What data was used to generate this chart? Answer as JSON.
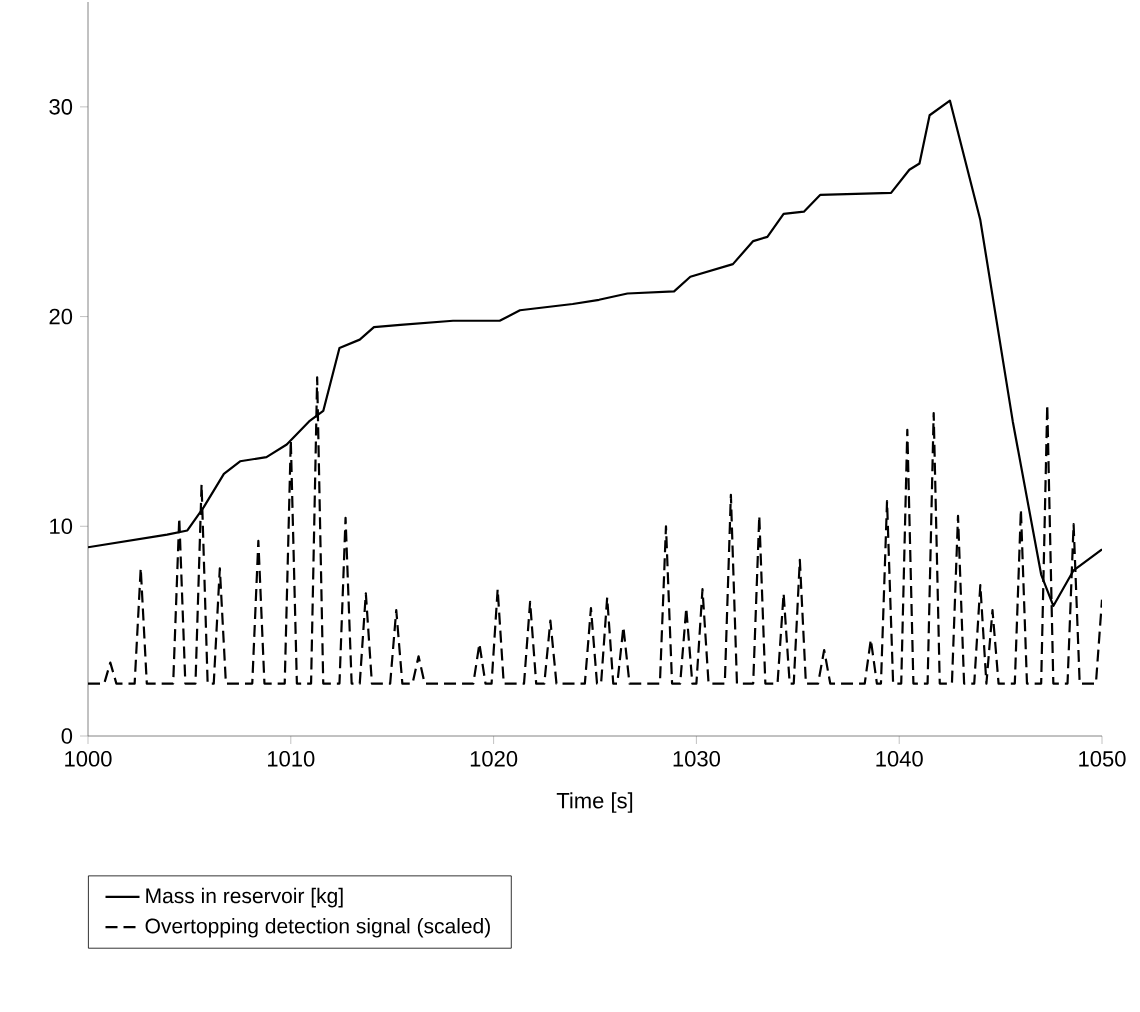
{
  "chart_data": {
    "type": "line",
    "xlabel": "Time [s]",
    "xlim": [
      1000,
      1050
    ],
    "xticks": [
      1000,
      1010,
      1020,
      1030,
      1040,
      1050
    ],
    "ylim": [
      0,
      35
    ],
    "yticks": [
      0,
      10,
      20,
      30
    ],
    "grid": false,
    "legend": "bottom",
    "series": [
      {
        "name": "Mass in reservoir [kg]",
        "color": "#000000",
        "line_style": "solid",
        "x": [
          1000.0,
          1003.9,
          1004.9,
          1005.7,
          1006.7,
          1007.5,
          1008.8,
          1009.8,
          1010.9,
          1011.6,
          1012.4,
          1013.4,
          1014.1,
          1015.4,
          1018.0,
          1020.3,
          1021.3,
          1023.9,
          1025.2,
          1026.6,
          1028.9,
          1029.7,
          1031.8,
          1032.8,
          1033.5,
          1034.3,
          1035.3,
          1036.1,
          1039.6,
          1040.5,
          1041.0,
          1041.5,
          1042.5,
          1044.0,
          1045.6,
          1047.0,
          1047.6,
          1048.6,
          1050.0
        ],
        "values": [
          9.0,
          9.6,
          9.8,
          10.9,
          12.5,
          13.1,
          13.3,
          13.9,
          15.0,
          15.5,
          18.5,
          18.9,
          19.5,
          19.6,
          19.8,
          19.8,
          20.3,
          20.6,
          20.8,
          21.1,
          21.2,
          21.9,
          22.5,
          23.6,
          23.8,
          24.9,
          25.0,
          25.8,
          25.9,
          27.0,
          27.3,
          29.6,
          30.3,
          24.6,
          15.0,
          7.7,
          6.2,
          7.9,
          8.9
        ]
      },
      {
        "name": "Overtopping detection signal (scaled)",
        "color": "#000000",
        "line_style": "dashed",
        "x": [
          1000.0,
          1000.8,
          1001.1,
          1001.4,
          1002.3,
          1002.6,
          1002.9,
          1004.2,
          1004.5,
          1004.8,
          1005.3,
          1005.6,
          1005.9,
          1006.2,
          1006.5,
          1006.8,
          1008.1,
          1008.4,
          1008.7,
          1009.7,
          1010.0,
          1010.3,
          1011.0,
          1011.3,
          1011.6,
          1012.4,
          1012.7,
          1013.0,
          1013.4,
          1013.7,
          1014.0,
          1014.9,
          1015.2,
          1015.5,
          1016.0,
          1016.3,
          1016.6,
          1019.0,
          1019.3,
          1019.6,
          1019.9,
          1020.2,
          1020.5,
          1021.5,
          1021.8,
          1022.1,
          1022.5,
          1022.8,
          1023.1,
          1024.5,
          1024.8,
          1025.1,
          1025.3,
          1025.6,
          1025.9,
          1026.1,
          1026.4,
          1026.7,
          1028.2,
          1028.5,
          1028.8,
          1029.2,
          1029.5,
          1029.8,
          1030.0,
          1030.3,
          1030.6,
          1031.4,
          1031.7,
          1032.0,
          1032.8,
          1033.1,
          1033.4,
          1034.0,
          1034.3,
          1034.6,
          1034.8,
          1035.1,
          1035.4,
          1036.0,
          1036.3,
          1036.6,
          1038.3,
          1038.6,
          1038.9,
          1039.1,
          1039.4,
          1039.7,
          1040.1,
          1040.4,
          1040.7,
          1041.4,
          1041.7,
          1042.0,
          1042.6,
          1042.9,
          1043.2,
          1043.7,
          1044.0,
          1044.3,
          1044.6,
          1044.9,
          1045.7,
          1046.0,
          1046.3,
          1047.0,
          1047.3,
          1047.6,
          1048.3,
          1048.6,
          1048.9,
          1049.7,
          1050.0
        ],
        "values": [
          2.5,
          2.5,
          3.5,
          2.5,
          2.5,
          8.0,
          2.5,
          2.5,
          10.4,
          2.5,
          2.5,
          12.0,
          2.5,
          2.5,
          8.0,
          2.5,
          2.5,
          9.3,
          2.5,
          2.5,
          14.1,
          2.5,
          2.5,
          17.1,
          2.5,
          2.5,
          10.4,
          2.5,
          2.5,
          6.8,
          2.5,
          2.5,
          6.0,
          2.5,
          2.5,
          3.8,
          2.5,
          2.5,
          4.4,
          2.5,
          2.5,
          7.0,
          2.5,
          2.5,
          6.4,
          2.5,
          2.5,
          5.5,
          2.5,
          2.5,
          6.1,
          2.5,
          2.5,
          6.6,
          2.5,
          2.5,
          5.2,
          2.5,
          2.5,
          10.0,
          2.5,
          2.5,
          6.1,
          2.5,
          2.5,
          7.0,
          2.5,
          2.5,
          11.5,
          2.5,
          2.5,
          10.5,
          2.5,
          2.5,
          6.8,
          2.5,
          2.5,
          8.4,
          2.5,
          2.5,
          4.1,
          2.5,
          2.5,
          4.6,
          2.5,
          2.5,
          11.2,
          2.5,
          2.5,
          14.6,
          2.5,
          2.5,
          15.4,
          2.5,
          2.5,
          10.5,
          2.5,
          2.5,
          7.2,
          2.5,
          6.0,
          2.5,
          2.5,
          10.8,
          2.5,
          2.5,
          15.8,
          2.5,
          2.5,
          10.1,
          2.5,
          2.5,
          6.5
        ]
      }
    ]
  }
}
